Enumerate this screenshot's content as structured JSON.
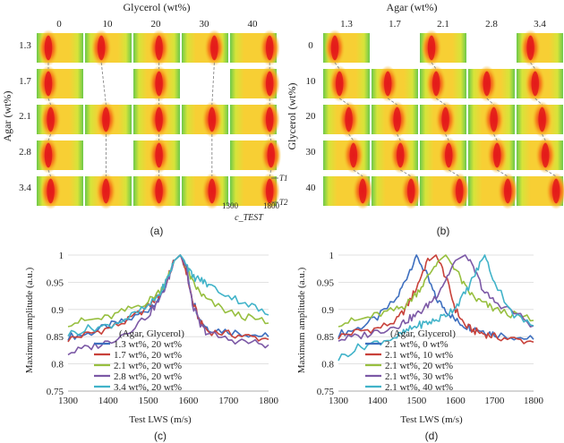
{
  "colors": {
    "hot": "#e8221c",
    "warm": "#f57a1c",
    "mid": "#f7c832",
    "cool": "#d8e63c",
    "green": "#42c24a",
    "series_c": [
      "#3e6fbf",
      "#c8413a",
      "#97bf3f",
      "#7c59a6",
      "#41b3c9"
    ],
    "series_d": [
      "#3e6fbf",
      "#c8413a",
      "#97bf3f",
      "#7c59a6",
      "#41b3c9"
    ]
  },
  "panel_a": {
    "label": "(a)",
    "top_title": "Glycerol (wt%)",
    "col_labels": [
      "0",
      "10",
      "20",
      "30",
      "40"
    ],
    "side_title": "Agar (wt%)",
    "row_labels": [
      "1.3",
      "1.7",
      "2.1",
      "2.8",
      "3.4"
    ],
    "present": [
      [
        1,
        1,
        1,
        1,
        1
      ],
      [
        1,
        0,
        1,
        0,
        1
      ],
      [
        1,
        1,
        1,
        1,
        1
      ],
      [
        1,
        0,
        1,
        0,
        1
      ],
      [
        1,
        1,
        1,
        1,
        1
      ]
    ],
    "peak_frac": [
      [
        0.25,
        0.35,
        0.55,
        0.7,
        0.85
      ],
      [
        0.25,
        null,
        0.55,
        null,
        0.85
      ],
      [
        0.3,
        0.45,
        0.55,
        0.65,
        0.85
      ],
      [
        0.25,
        null,
        0.55,
        null,
        0.88
      ],
      [
        0.3,
        0.45,
        0.55,
        0.65,
        0.85
      ]
    ],
    "xaxis_ticks": [
      "1300",
      "1800"
    ],
    "xaxis_title": "c_TEST",
    "t1_label": "T1",
    "t2_label": "T2"
  },
  "panel_b": {
    "label": "(b)",
    "top_title": "Agar (wt%)",
    "col_labels": [
      "1.3",
      "1.7",
      "2.1",
      "2.8",
      "3.4"
    ],
    "side_title": "Glycerol (wt%)",
    "row_labels": [
      "0",
      "10",
      "20",
      "30",
      "40"
    ],
    "present": [
      [
        1,
        0,
        1,
        0,
        1
      ],
      [
        1,
        1,
        1,
        1,
        1
      ],
      [
        1,
        1,
        1,
        1,
        1
      ],
      [
        1,
        1,
        1,
        1,
        1
      ],
      [
        1,
        1,
        1,
        1,
        1
      ]
    ],
    "peak_frac": [
      [
        0.25,
        null,
        0.25,
        null,
        0.3
      ],
      [
        0.35,
        0.35,
        0.35,
        0.4,
        0.4
      ],
      [
        0.55,
        0.55,
        0.55,
        0.55,
        0.55
      ],
      [
        0.65,
        0.62,
        0.62,
        0.62,
        0.62
      ],
      [
        0.85,
        0.85,
        0.85,
        0.85,
        0.85
      ]
    ]
  },
  "panel_c": {
    "label": "(c)",
    "xlabel": "Test LWS (m/s)",
    "ylabel": "Maximum amplitude (a.u.)",
    "legend_title": "(Agar, Glycerol)"
  },
  "panel_d": {
    "label": "(d)",
    "xlabel": "Test LWS (m/s)",
    "ylabel": "Maximum amplitude (a.u.)"
  },
  "chart_data": [
    {
      "type": "line",
      "title": "(c)",
      "xlabel": "Test LWS (m/s)",
      "ylabel": "Maximum amplitude (a.u.)",
      "xlim": [
        1300,
        1800
      ],
      "ylim": [
        0.75,
        1
      ],
      "x_ticks": [
        "1300",
        "1400",
        "1500",
        "1600",
        "1700",
        "1800"
      ],
      "y_ticks": [
        "0.75",
        "0.8",
        "0.85",
        "0.9",
        "0.95",
        "1"
      ],
      "legend_title": "(Agar, Glycerol)",
      "x": [
        1300,
        1350,
        1400,
        1450,
        1500,
        1530,
        1550,
        1565,
        1580,
        1595,
        1610,
        1630,
        1650,
        1700,
        1750,
        1800
      ],
      "series": [
        {
          "name": "1.3 wt%,  20 wt%",
          "values": [
            0.85,
            0.855,
            0.87,
            0.88,
            0.9,
            0.925,
            0.955,
            0.99,
            1.0,
            0.975,
            0.92,
            0.88,
            0.865,
            0.86,
            0.855,
            0.85
          ]
        },
        {
          "name": "1.7 wt%,  20 wt%",
          "values": [
            0.845,
            0.855,
            0.865,
            0.88,
            0.905,
            0.93,
            0.96,
            0.99,
            1.0,
            0.97,
            0.915,
            0.875,
            0.86,
            0.855,
            0.85,
            0.845
          ]
        },
        {
          "name": "2.1 wt%,  20 wt%",
          "values": [
            0.875,
            0.88,
            0.885,
            0.9,
            0.915,
            0.935,
            0.96,
            0.99,
            1.0,
            0.98,
            0.95,
            0.93,
            0.915,
            0.895,
            0.885,
            0.875
          ]
        },
        {
          "name": "2.8 wt%,  20 wt%",
          "values": [
            0.82,
            0.83,
            0.84,
            0.86,
            0.89,
            0.92,
            0.955,
            0.99,
            1.0,
            0.975,
            0.91,
            0.87,
            0.855,
            0.845,
            0.84,
            0.835
          ]
        },
        {
          "name": "3.4 wt%,  20 wt%",
          "values": [
            0.855,
            0.865,
            0.87,
            0.885,
            0.905,
            0.93,
            0.96,
            0.99,
            1.0,
            0.985,
            0.96,
            0.955,
            0.945,
            0.925,
            0.91,
            0.89
          ]
        }
      ]
    },
    {
      "type": "line",
      "title": "(d)",
      "xlabel": "Test LWS (m/s)",
      "ylabel": "Maximum amplitude (a.u.)",
      "xlim": [
        1300,
        1800
      ],
      "ylim": [
        0.75,
        1
      ],
      "x_ticks": [
        "1300",
        "1400",
        "1500",
        "1600",
        "1700",
        "1800"
      ],
      "y_ticks": [
        "0.75",
        "0.8",
        "0.85",
        "0.9",
        "0.95",
        "1"
      ],
      "legend_title": "(Agar, Glycerol)",
      "x": [
        1300,
        1350,
        1400,
        1450,
        1475,
        1500,
        1525,
        1550,
        1575,
        1600,
        1625,
        1650,
        1675,
        1700,
        1750,
        1800
      ],
      "series": [
        {
          "name": "2.1 wt%,  0 wt%",
          "values": [
            0.855,
            0.865,
            0.885,
            0.92,
            0.96,
            1.0,
            0.965,
            0.92,
            0.9,
            0.88,
            0.87,
            0.865,
            0.86,
            0.855,
            0.85,
            0.845
          ]
        },
        {
          "name": "2.1 wt%,  10 wt%",
          "values": [
            0.85,
            0.86,
            0.865,
            0.88,
            0.905,
            0.94,
            0.985,
            1.0,
            0.96,
            0.9,
            0.87,
            0.86,
            0.855,
            0.85,
            0.845,
            0.84
          ]
        },
        {
          "name": "2.1 wt%,  20 wt%",
          "values": [
            0.875,
            0.88,
            0.89,
            0.9,
            0.91,
            0.93,
            0.955,
            0.985,
            1.0,
            0.975,
            0.94,
            0.92,
            0.91,
            0.9,
            0.89,
            0.88
          ]
        },
        {
          "name": "2.1 wt%,  30 wt%",
          "values": [
            0.845,
            0.85,
            0.86,
            0.87,
            0.88,
            0.89,
            0.905,
            0.925,
            0.955,
            0.99,
            1.0,
            0.97,
            0.93,
            0.915,
            0.895,
            0.87
          ]
        },
        {
          "name": "2.1 wt%,  40 wt%",
          "values": [
            0.81,
            0.83,
            0.84,
            0.85,
            0.86,
            0.87,
            0.875,
            0.88,
            0.89,
            0.905,
            0.93,
            0.965,
            1.0,
            0.95,
            0.89,
            0.87
          ]
        }
      ]
    }
  ]
}
